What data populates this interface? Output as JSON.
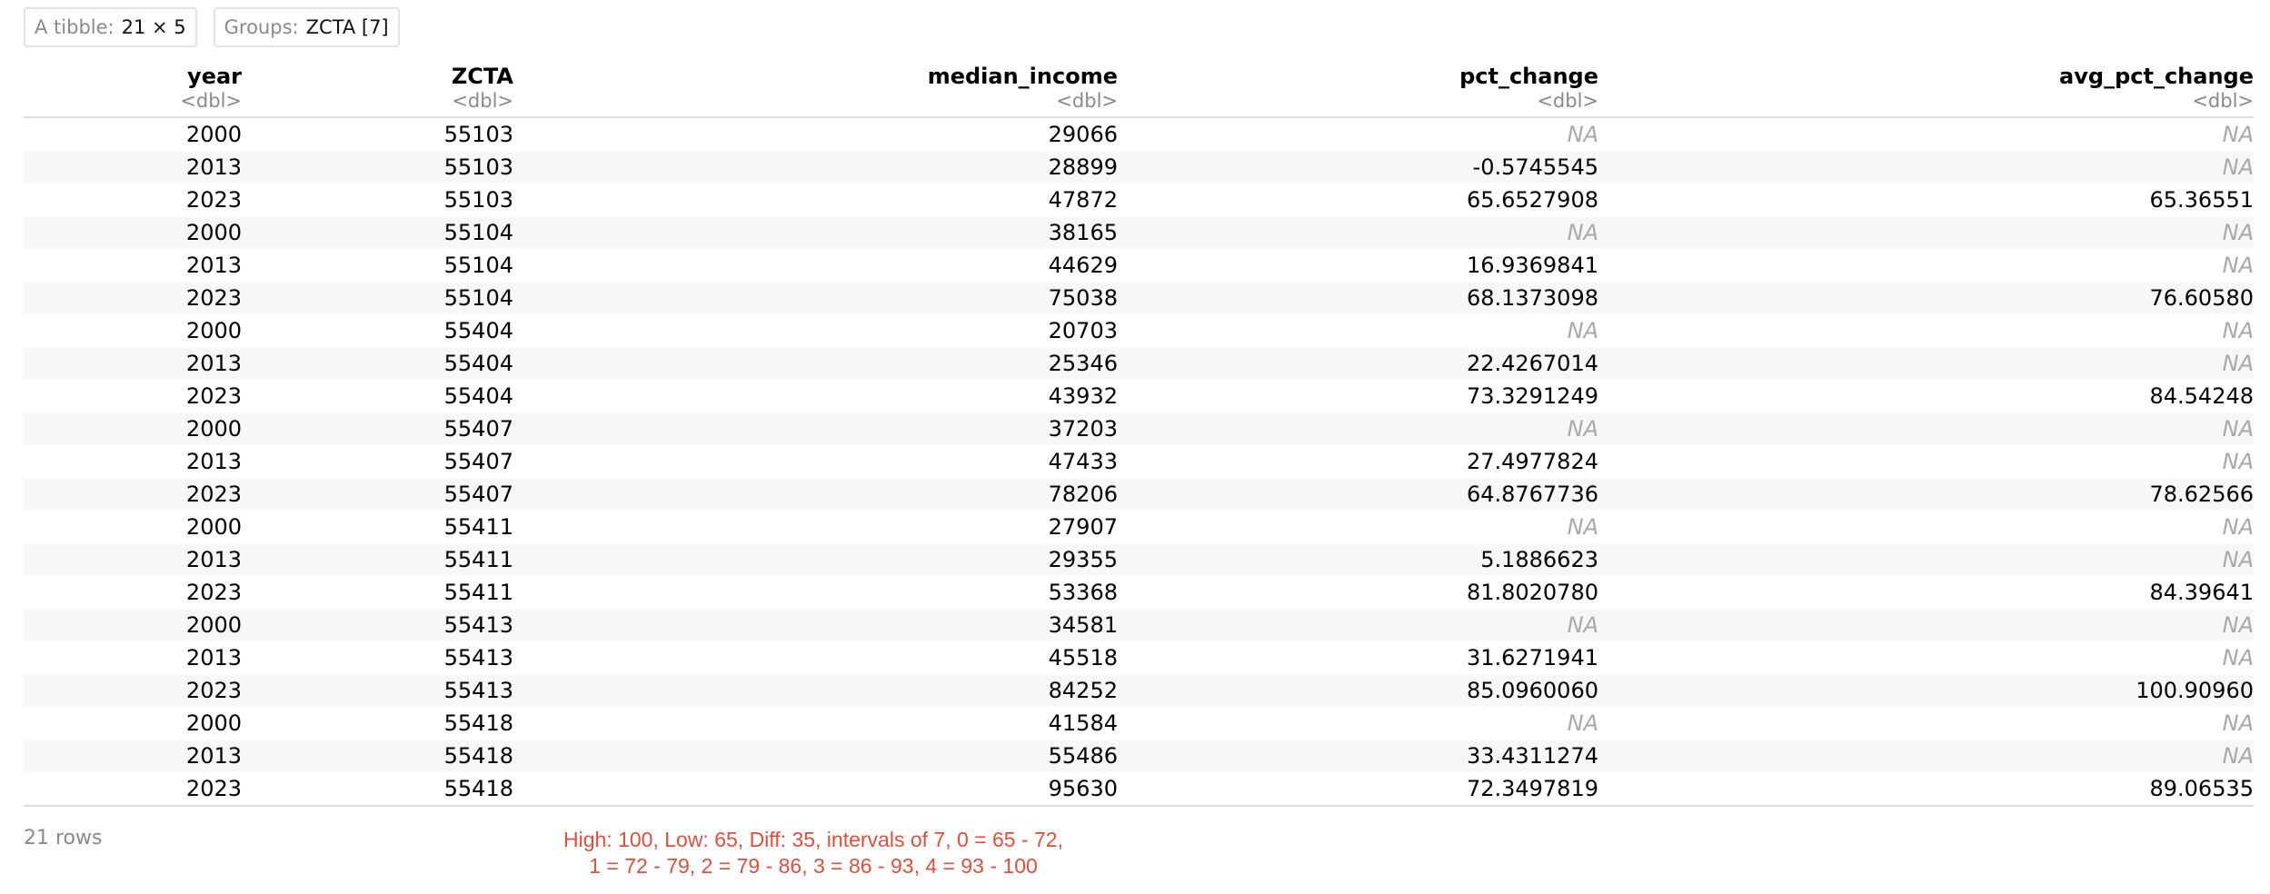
{
  "tibble": {
    "label": "A tibble:",
    "dims": "21 × 5",
    "groups_label": "Groups:",
    "groups_value": "ZCTA [7]"
  },
  "columns": [
    {
      "name": "year",
      "type": "<dbl>"
    },
    {
      "name": "ZCTA",
      "type": "<dbl>"
    },
    {
      "name": "median_income",
      "type": "<dbl>"
    },
    {
      "name": "pct_change",
      "type": "<dbl>"
    },
    {
      "name": "avg_pct_change",
      "type": "<dbl>"
    }
  ],
  "rows": [
    [
      "2000",
      "55103",
      "29066",
      "NA",
      "NA"
    ],
    [
      "2013",
      "55103",
      "28899",
      "-0.5745545",
      "NA"
    ],
    [
      "2023",
      "55103",
      "47872",
      "65.6527908",
      "65.36551"
    ],
    [
      "2000",
      "55104",
      "38165",
      "NA",
      "NA"
    ],
    [
      "2013",
      "55104",
      "44629",
      "16.9369841",
      "NA"
    ],
    [
      "2023",
      "55104",
      "75038",
      "68.1373098",
      "76.60580"
    ],
    [
      "2000",
      "55404",
      "20703",
      "NA",
      "NA"
    ],
    [
      "2013",
      "55404",
      "25346",
      "22.4267014",
      "NA"
    ],
    [
      "2023",
      "55404",
      "43932",
      "73.3291249",
      "84.54248"
    ],
    [
      "2000",
      "55407",
      "37203",
      "NA",
      "NA"
    ],
    [
      "2013",
      "55407",
      "47433",
      "27.4977824",
      "NA"
    ],
    [
      "2023",
      "55407",
      "78206",
      "64.8767736",
      "78.62566"
    ],
    [
      "2000",
      "55411",
      "27907",
      "NA",
      "NA"
    ],
    [
      "2013",
      "55411",
      "29355",
      "5.1886623",
      "NA"
    ],
    [
      "2023",
      "55411",
      "53368",
      "81.8020780",
      "84.39641"
    ],
    [
      "2000",
      "55413",
      "34581",
      "NA",
      "NA"
    ],
    [
      "2013",
      "55413",
      "45518",
      "31.6271941",
      "NA"
    ],
    [
      "2023",
      "55413",
      "84252",
      "85.0960060",
      "100.90960"
    ],
    [
      "2000",
      "55418",
      "41584",
      "NA",
      "NA"
    ],
    [
      "2013",
      "55418",
      "55486",
      "33.4311274",
      "NA"
    ],
    [
      "2023",
      "55418",
      "95630",
      "72.3497819",
      "89.06535"
    ]
  ],
  "footer": {
    "row_count": "21 rows",
    "note_line1": "High: 100, Low: 65, Diff: 35, intervals of 7, 0 = 65 - 72,",
    "note_line2": "1 = 72 - 79, 2 = 79 - 86, 3 = 86 - 93, 4 = 93 - 100"
  },
  "colors": {
    "na_text": "#a9a9a9",
    "type_text": "#8a8a8a",
    "note_text": "#e34e3b",
    "stripe": "#f7f7f7"
  }
}
